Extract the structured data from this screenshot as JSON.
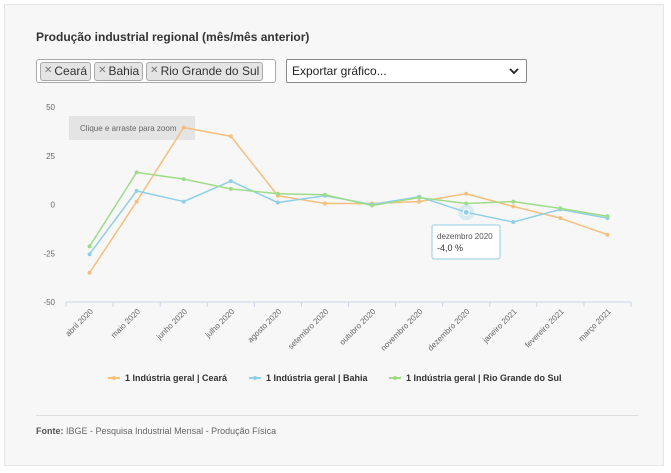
{
  "title": "Produção industrial regional (mês/mês anterior)",
  "filters": {
    "tags": [
      {
        "label": "Ceará"
      },
      {
        "label": "Bahia"
      },
      {
        "label": "Rio Grande do Sul"
      }
    ],
    "export_select": "Exportar gráfico..."
  },
  "zoom_hint": "Clique e arraste para zoom",
  "tooltip": {
    "label": "dezembro 2020",
    "value": "-4,0 %"
  },
  "source": {
    "label": "Fonte:",
    "text": "IBGE - Pesquisa Industrial Mensal - Produção Física"
  },
  "chart_data": {
    "type": "line",
    "categories": [
      "abril 2020",
      "maio 2020",
      "junho 2020",
      "julho 2020",
      "agosto 2020",
      "setembro 2020",
      "outubro 2020",
      "novembro 2020",
      "dezembro 2020",
      "janeiro 2021",
      "fevereiro 2021",
      "março 2021"
    ],
    "ylim": [
      -50,
      50
    ],
    "yticks": [
      50,
      25,
      0,
      -25,
      -50
    ],
    "grid": false,
    "legend_position": "bottom",
    "highlighted_point": {
      "series": 1,
      "index": 8
    },
    "series": [
      {
        "name": "1 Indústria geral | Ceará",
        "color": "#f5bf7e",
        "values": [
          -35.0,
          1.5,
          39.5,
          35.0,
          4.5,
          0.5,
          0.5,
          1.5,
          5.5,
          -1.0,
          -7.0,
          -15.5
        ]
      },
      {
        "name": "1 Indústria geral | Bahia",
        "color": "#90cfe6",
        "values": [
          -25.5,
          7.0,
          1.5,
          12.0,
          1.0,
          4.5,
          0.0,
          4.0,
          -4.0,
          -9.0,
          -2.5,
          -7.0
        ]
      },
      {
        "name": "1 Indústria geral | Rio Grande do Sul",
        "color": "#9fdc8a",
        "values": [
          -21.5,
          16.5,
          13.0,
          8.0,
          5.5,
          5.0,
          -0.5,
          3.5,
          0.5,
          1.5,
          -2.0,
          -6.0
        ]
      }
    ]
  }
}
